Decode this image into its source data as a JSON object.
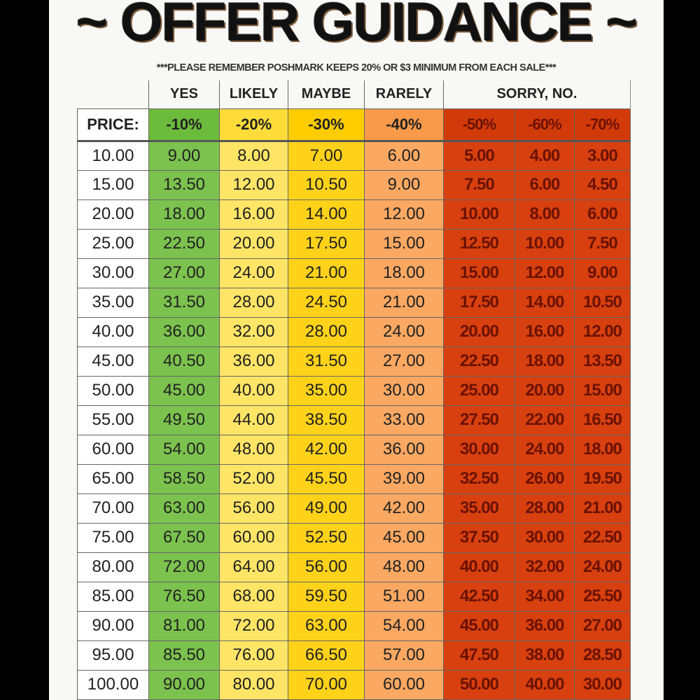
{
  "title": "~ OFFER GUIDANCE ~",
  "note": "***PLEASE REMEMBER POSHMARK KEEPS 20% OR $3 MINIMUM FROM EACH SALE***",
  "headers": [
    "YES",
    "LIKELY",
    "MAYBE",
    "RARELY",
    "SORRY, NO."
  ],
  "price_label": "PRICE:",
  "discounts": [
    "-10%",
    "-20%",
    "-30%",
    "-40%",
    "-50%",
    "-60%",
    "-70%"
  ],
  "colors": {
    "yes": "#7cc24e",
    "likely": "#ffe566",
    "maybe": "#ffd21a",
    "rarely": "#fba862",
    "no": "#d8400f"
  },
  "rows": [
    [
      "10.00",
      "9.00",
      "8.00",
      "7.00",
      "6.00",
      "5.00",
      "4.00",
      "3.00"
    ],
    [
      "15.00",
      "13.50",
      "12.00",
      "10.50",
      "9.00",
      "7.50",
      "6.00",
      "4.50"
    ],
    [
      "20.00",
      "18.00",
      "16.00",
      "14.00",
      "12.00",
      "10.00",
      "8.00",
      "6.00"
    ],
    [
      "25.00",
      "22.50",
      "20.00",
      "17.50",
      "15.00",
      "12.50",
      "10.00",
      "7.50"
    ],
    [
      "30.00",
      "27.00",
      "24.00",
      "21.00",
      "18.00",
      "15.00",
      "12.00",
      "9.00"
    ],
    [
      "35.00",
      "31.50",
      "28.00",
      "24.50",
      "21.00",
      "17.50",
      "14.00",
      "10.50"
    ],
    [
      "40.00",
      "36.00",
      "32.00",
      "28.00",
      "24.00",
      "20.00",
      "16.00",
      "12.00"
    ],
    [
      "45.00",
      "40.50",
      "36.00",
      "31.50",
      "27.00",
      "22.50",
      "18.00",
      "13.50"
    ],
    [
      "50.00",
      "45.00",
      "40.00",
      "35.00",
      "30.00",
      "25.00",
      "20.00",
      "15.00"
    ],
    [
      "55.00",
      "49.50",
      "44.00",
      "38.50",
      "33.00",
      "27.50",
      "22.00",
      "16.50"
    ],
    [
      "60.00",
      "54.00",
      "48.00",
      "42.00",
      "36.00",
      "30.00",
      "24.00",
      "18.00"
    ],
    [
      "65.00",
      "58.50",
      "52.00",
      "45.50",
      "39.00",
      "32.50",
      "26.00",
      "19.50"
    ],
    [
      "70.00",
      "63.00",
      "56.00",
      "49.00",
      "42.00",
      "35.00",
      "28.00",
      "21.00"
    ],
    [
      "75.00",
      "67.50",
      "60.00",
      "52.50",
      "45.00",
      "37.50",
      "30.00",
      "22.50"
    ],
    [
      "80.00",
      "72.00",
      "64.00",
      "56.00",
      "48.00",
      "40.00",
      "32.00",
      "24.00"
    ],
    [
      "85.00",
      "76.50",
      "68.00",
      "59.50",
      "51.00",
      "42.50",
      "34.00",
      "25.50"
    ],
    [
      "90.00",
      "81.00",
      "72.00",
      "63.00",
      "54.00",
      "45.00",
      "36.00",
      "27.00"
    ],
    [
      "95.00",
      "85.50",
      "76.00",
      "66.50",
      "57.00",
      "47.50",
      "38.00",
      "28.50"
    ],
    [
      "100.00",
      "90.00",
      "80.00",
      "70.00",
      "60.00",
      "50.00",
      "40.00",
      "30.00"
    ]
  ]
}
